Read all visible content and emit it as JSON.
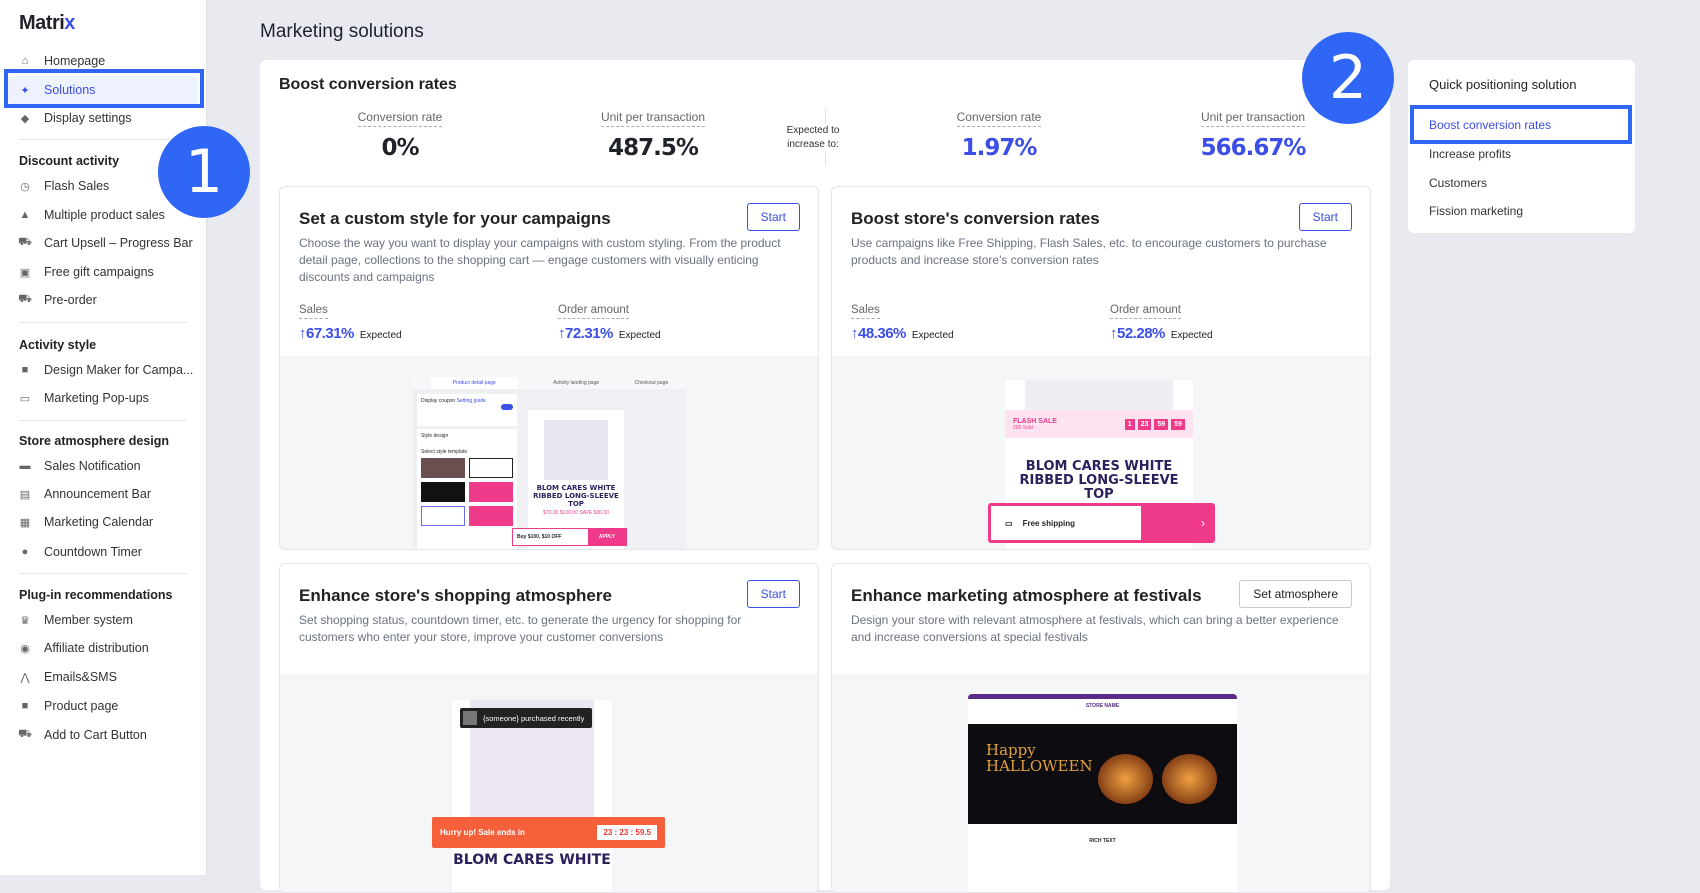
{
  "app": {
    "logo_main": "Matri",
    "logo_accent": "x",
    "page_title": "Marketing solutions"
  },
  "sidebar": {
    "top": [
      {
        "label": "Homepage",
        "icon": "home-icon"
      },
      {
        "label": "Solutions",
        "icon": "lightbulb-icon",
        "active": true
      },
      {
        "label": "Display settings",
        "icon": "palette-icon"
      }
    ],
    "groups": [
      {
        "title": "Discount activity",
        "items": [
          "Flash Sales",
          "Multiple product sales",
          "Cart Upsell – Progress Bar",
          "Free gift campaigns",
          "Pre-order"
        ]
      },
      {
        "title": "Activity style",
        "items": [
          "Design Maker for Campa...",
          "Marketing Pop-ups"
        ]
      },
      {
        "title": "Store atmosphere design",
        "items": [
          "Sales Notification",
          "Announcement Bar",
          "Marketing Calendar",
          "Countdown Timer"
        ]
      },
      {
        "title": "Plug-in recommendations",
        "items": [
          "Member system",
          "Affiliate distribution",
          "Emails&SMS",
          "Product page",
          "Add to Cart Button"
        ]
      }
    ]
  },
  "annotations": {
    "one": "1",
    "two": "2"
  },
  "main": {
    "title": "Boost conversion rates",
    "current": [
      {
        "label": "Conversion rate",
        "value": "0%"
      },
      {
        "label": "Unit per transaction",
        "value": "487.5%"
      }
    ],
    "expected_label": "Expected to increase to:",
    "expected": [
      {
        "label": "Conversion rate",
        "value": "1.97%"
      },
      {
        "label": "Unit per transaction",
        "value": "566.67%"
      }
    ],
    "cards": [
      {
        "title": "Set a custom style for your campaigns",
        "button": "Start",
        "desc": "Choose the way you want to display your campaigns with custom styling. From the product detail page, collections to the shopping cart — engage customers with visually enticing discounts and campaigns",
        "stats": [
          {
            "label": "Sales",
            "value": "↑67.31%",
            "note": "Expected"
          },
          {
            "label": "Order amount",
            "value": "↑72.31%",
            "note": "Expected"
          }
        ],
        "preview": {
          "tabs": [
            "Product detail page",
            "Activity landing page",
            "Checkout page"
          ],
          "display_coupon": "Display coupon",
          "setting_guide": "Setting guide",
          "style_design": "Style design",
          "select_template": "Select style template",
          "product": "BLOM CARES WHITE RIBBED LONG-SLEEVE TOP",
          "prices": "$70.00  $100.00  SAVE $30.00",
          "offer": "Buy $100, $10 OFF",
          "apply": "APPLY"
        }
      },
      {
        "title": "Boost store's conversion rates",
        "button": "Start",
        "desc": "Use campaigns like Free Shipping, Flash Sales, etc. to encourage customers to purchase products and increase store's conversion rates",
        "stats": [
          {
            "label": "Sales",
            "value": "↑48.36%",
            "note": "Expected"
          },
          {
            "label": "Order amount",
            "value": "↑52.28%",
            "note": "Expected"
          }
        ],
        "preview": {
          "flash": "FLASH SALE",
          "sold": "200 Sold",
          "timer": [
            "1",
            "23",
            "59",
            "59"
          ],
          "product": "BLOM CARES WHITE RIBBED LONG-SLEEVE TOP",
          "shipping": "Free shipping"
        }
      },
      {
        "title": "Enhance store's shopping atmosphere",
        "button": "Start",
        "desc": "Set shopping status, countdown timer, etc. to generate the urgency for shopping for customers who enter your store, improve your customer conversions",
        "preview": {
          "purchased": "{someone} purchased recently",
          "hurry": "Hurry up! Sale ends in",
          "timer": "23 : 23 : 59.5",
          "product": "BLOM CARES WHITE"
        }
      },
      {
        "title": "Enhance marketing atmosphere at festivals",
        "button": "Set atmosphere",
        "desc": "Design your store with relevant atmosphere at festivals, which can bring a better experience and increase conversions at special festivals",
        "preview": {
          "store": "STORE NAME",
          "happy": "Happy",
          "halloween": "HALLOWEEN",
          "rich": "RICH TEXT"
        }
      }
    ]
  },
  "quick": {
    "title": "Quick positioning solution",
    "items": [
      "Boost conversion rates",
      "Increase profits",
      "Customers",
      "Fission marketing"
    ],
    "active": 0
  },
  "colors": {
    "accent": "#3b4ee8",
    "annotation": "#2f66f5",
    "pink": "#ef3a8a"
  }
}
